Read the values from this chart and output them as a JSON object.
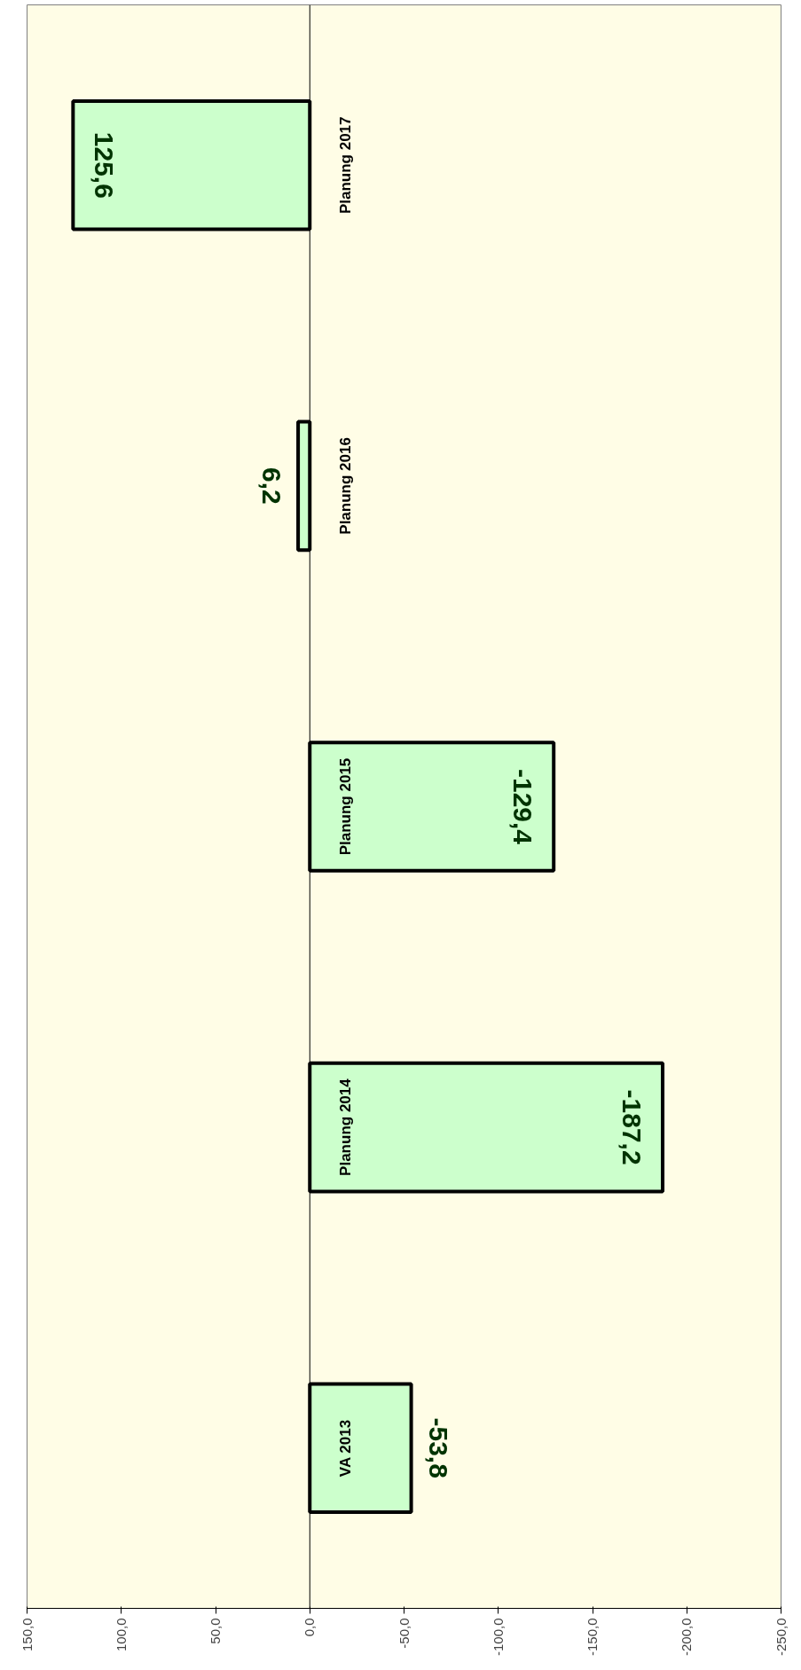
{
  "chart_data": {
    "type": "bar",
    "orientation": "horizontal",
    "categories": [
      "Planung 2017",
      "Planung 2016",
      "Planung 2015",
      "Planung 2014",
      "VA 2013"
    ],
    "values": [
      125.6,
      6.2,
      -129.4,
      -187.2,
      -53.8
    ],
    "color": "#ccffcc",
    "value_labels": [
      "125,6",
      "6,2",
      "-129,4",
      "-187,2",
      "-53,8"
    ],
    "xlim": [
      150,
      -250
    ],
    "xticks": [
      {
        "value": 150,
        "label": "150,0"
      },
      {
        "value": 100,
        "label": "100,0"
      },
      {
        "value": 50,
        "label": "50,0"
      },
      {
        "value": 0,
        "label": "0,0"
      },
      {
        "value": -50,
        "label": "-50,0"
      },
      {
        "value": -100,
        "label": "-100,0"
      },
      {
        "value": -150,
        "label": "-150,0"
      },
      {
        "value": -200,
        "label": "-200,0"
      },
      {
        "value": -250,
        "label": "-250,0"
      }
    ],
    "grid": false
  }
}
